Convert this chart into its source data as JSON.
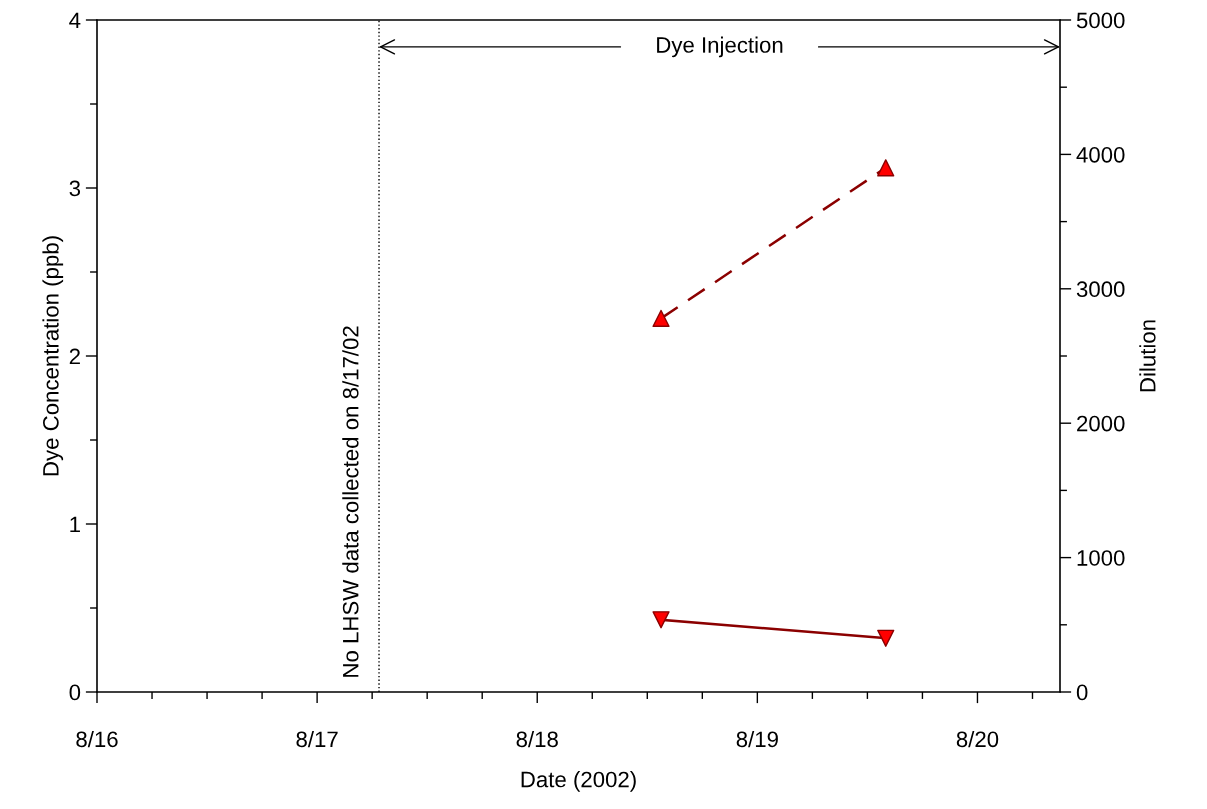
{
  "chart_data": {
    "type": "line",
    "xlabel": "Date (2002)",
    "ylabel": "Dye Concentration (ppb)",
    "y2label": "Dilution",
    "x": [
      "2002-08-18T13:30",
      "2002-08-19T14:00"
    ],
    "series": [
      {
        "color": "#8b0000",
        "colors": [
          "#ff0000",
          "#ff0000"
        ],
        "marker": "triangle_down",
        "line_style": "solid",
        "values": [
          0.43,
          0.32
        ]
      },
      {
        "axis": "y2",
        "color": "#8b0000",
        "colors": [
          "#ff0000",
          "#ff0000"
        ],
        "marker": "triangle",
        "line_style": "dashed",
        "values": [
          2780,
          3900
        ]
      }
    ],
    "xlim": [
      "2002-08-16T00:00",
      "2002-08-20T09:00"
    ],
    "xticks": [
      {
        "value": "2002-08-16T00:00",
        "label": "8/16"
      },
      {
        "value": "2002-08-16T06:00",
        "label": null
      },
      {
        "value": "2002-08-16T12:00",
        "label": null
      },
      {
        "value": "2002-08-16T18:00",
        "label": null
      },
      {
        "value": "2002-08-17T00:00",
        "label": "8/17"
      },
      {
        "value": "2002-08-17T06:00",
        "label": null
      },
      {
        "value": "2002-08-17T12:00",
        "label": null
      },
      {
        "value": "2002-08-17T18:00",
        "label": null
      },
      {
        "value": "2002-08-18T00:00",
        "label": "8/18"
      },
      {
        "value": "2002-08-18T06:00",
        "label": null
      },
      {
        "value": "2002-08-18T12:00",
        "label": null
      },
      {
        "value": "2002-08-18T18:00",
        "label": null
      },
      {
        "value": "2002-08-19T00:00",
        "label": "8/19"
      },
      {
        "value": "2002-08-19T06:00",
        "label": null
      },
      {
        "value": "2002-08-19T12:00",
        "label": null
      },
      {
        "value": "2002-08-19T18:00",
        "label": null
      },
      {
        "value": "2002-08-20T00:00",
        "label": "8/20"
      },
      {
        "value": "2002-08-20T06:00",
        "label": null
      }
    ],
    "ylim": [
      0,
      4
    ],
    "yticks": [
      0,
      {
        "value": 0.5,
        "label": null
      },
      1,
      {
        "value": 1.5,
        "label": null
      },
      2,
      {
        "value": 2.5,
        "label": null
      },
      3,
      {
        "value": 3.5,
        "label": null
      },
      4
    ],
    "y2lim": [
      0,
      5000
    ],
    "y2ticks": [
      0,
      {
        "value": 500,
        "label": null
      },
      1000,
      {
        "value": 1500,
        "label": null
      },
      2000,
      {
        "value": 2500,
        "label": null
      },
      3000,
      {
        "value": 3500,
        "label": null
      },
      4000,
      {
        "value": 4500,
        "label": null
      },
      5000
    ],
    "ref_lines": [
      {
        "axis": "x",
        "value": "2002-08-17T06:45",
        "label": "No LHSW data collected on 8/17/02",
        "color": "#000000",
        "line_style": "dotted"
      }
    ],
    "annotations": [
      "Dye Injection"
    ],
    "grid": false,
    "legend": false
  }
}
